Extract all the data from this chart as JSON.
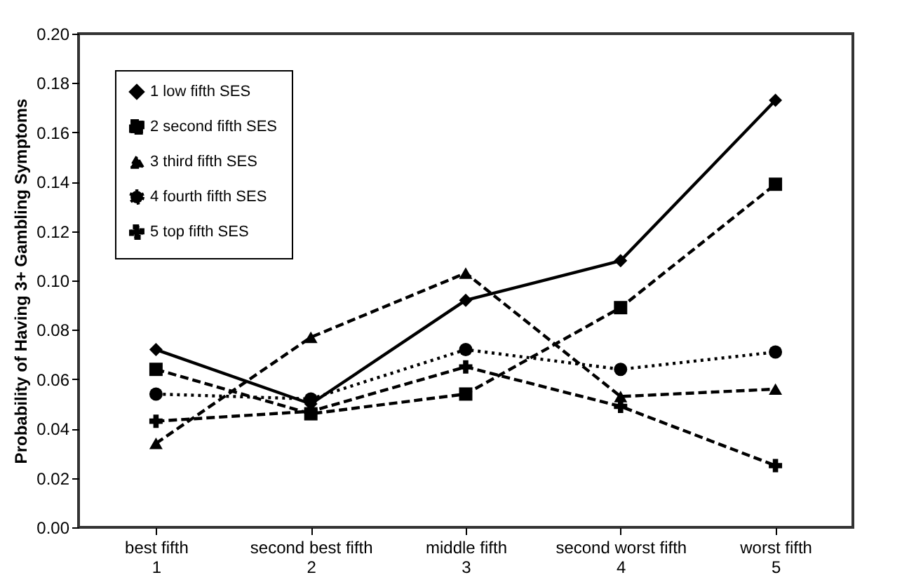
{
  "chart_data": {
    "type": "line",
    "ylabel": "Probability of Having 3+ Gambling Symptoms",
    "categories": [
      "best fifth\n1",
      "second best fifth\n2",
      "middle fifth\n3",
      "second worst fifth\n4",
      "worst fifth\n5"
    ],
    "series": [
      {
        "name": "1 low fifth SES",
        "color": "#000000",
        "marker": "diamond",
        "line_style": "solid",
        "values": [
          0.072,
          0.05,
          0.092,
          0.108,
          0.173
        ]
      },
      {
        "name": "2 second fifth SES",
        "color": "#000000",
        "marker": "square",
        "line_style": "dashed",
        "values": [
          0.064,
          0.046,
          0.054,
          0.089,
          0.139
        ]
      },
      {
        "name": "3 third fifth SES",
        "color": "#000000",
        "marker": "triangle",
        "line_style": "dashed",
        "values": [
          0.034,
          0.077,
          0.103,
          0.053,
          0.056
        ]
      },
      {
        "name": "4 fourth fifth SES",
        "color": "#000000",
        "marker": "circle",
        "line_style": "dotted",
        "values": [
          0.054,
          0.052,
          0.072,
          0.064,
          0.071
        ]
      },
      {
        "name": "5 top fifth SES",
        "color": "#000000",
        "marker": "cross",
        "line_style": "dashed",
        "values": [
          0.043,
          0.047,
          0.065,
          0.049,
          0.025
        ]
      }
    ],
    "ylim": [
      0,
      0.2
    ],
    "yticks": [
      {
        "value": 0,
        "label": "0.00"
      },
      {
        "value": 0.02,
        "label": "0.02"
      },
      {
        "value": 0.04,
        "label": "0.04"
      },
      {
        "value": 0.06,
        "label": "0.06"
      },
      {
        "value": 0.08,
        "label": "0.08"
      },
      {
        "value": 0.1,
        "label": "0.10"
      },
      {
        "value": 0.12,
        "label": "0.12"
      },
      {
        "value": 0.14,
        "label": "0.14"
      },
      {
        "value": 0.16,
        "label": "0.16"
      },
      {
        "value": 0.18,
        "label": "0.18"
      },
      {
        "value": 0.2,
        "label": "0.20"
      }
    ],
    "grid": false,
    "legend": "top left"
  }
}
